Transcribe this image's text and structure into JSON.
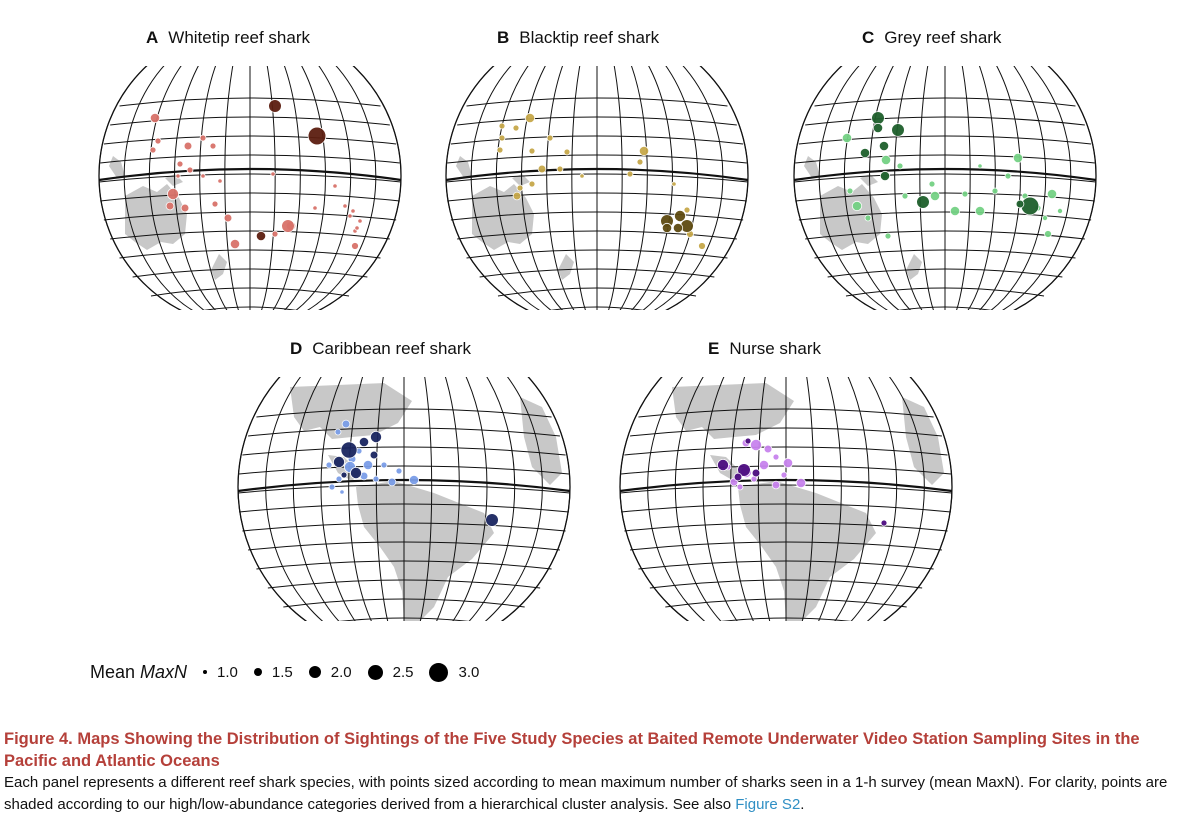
{
  "panels": [
    {
      "letter": "A",
      "title": "Whitetip reef shark",
      "region": "pacific",
      "colors": {
        "light": "#d9726a",
        "dark": "#5c1e10"
      },
      "points": [
        [
          60,
          52,
          "l",
          1.4
        ],
        [
          63,
          75,
          "l",
          1.0
        ],
        [
          58,
          84,
          "l",
          1.0
        ],
        [
          93,
          80,
          "l",
          1.2
        ],
        [
          108,
          72,
          "l",
          1.0
        ],
        [
          118,
          80,
          "l",
          1.0
        ],
        [
          85,
          98,
          "l",
          1.0
        ],
        [
          95,
          104,
          "l",
          1.0
        ],
        [
          108,
          110,
          "l",
          0.8
        ],
        [
          125,
          115,
          "l",
          0.8
        ],
        [
          78,
          128,
          "l",
          1.6
        ],
        [
          75,
          140,
          "l",
          1.2
        ],
        [
          90,
          142,
          "l",
          1.2
        ],
        [
          83,
          110,
          "l",
          0.8
        ],
        [
          133,
          152,
          "l",
          1.2
        ],
        [
          140,
          178,
          "l",
          1.4
        ],
        [
          180,
          168,
          "l",
          1.0
        ],
        [
          196,
          160,
          "l",
          1.4
        ],
        [
          193,
          160,
          "l",
          1.8
        ],
        [
          220,
          142,
          "l",
          0.8
        ],
        [
          240,
          120,
          "l",
          0.8
        ],
        [
          250,
          140,
          "l",
          0.8
        ],
        [
          255,
          150,
          "l",
          0.8
        ],
        [
          258,
          145,
          "l",
          0.8
        ],
        [
          260,
          165,
          "l",
          0.8
        ],
        [
          262,
          162,
          "l",
          0.8
        ],
        [
          265,
          155,
          "l",
          0.8
        ],
        [
          178,
          108,
          "l",
          0.8
        ],
        [
          260,
          180,
          "l",
          1.1
        ],
        [
          120,
          138,
          "l",
          1.0
        ],
        [
          180,
          40,
          "d",
          1.8
        ],
        [
          222,
          70,
          "d",
          2.4
        ],
        [
          166,
          170,
          "d",
          1.4
        ]
      ]
    },
    {
      "letter": "B",
      "title": "Blacktip reef shark",
      "region": "pacific",
      "colors": {
        "light": "#c7a84a",
        "dark": "#5e4a10"
      },
      "points": [
        [
          60,
          60,
          "l",
          1.0
        ],
        [
          74,
          62,
          "l",
          1.0
        ],
        [
          88,
          52,
          "l",
          1.4
        ],
        [
          60,
          72,
          "l",
          1.0
        ],
        [
          58,
          84,
          "l",
          1.0
        ],
        [
          90,
          85,
          "l",
          1.0
        ],
        [
          108,
          72,
          "l",
          1.0
        ],
        [
          125,
          86,
          "l",
          1.0
        ],
        [
          118,
          103,
          "l",
          1.0
        ],
        [
          100,
          103,
          "l",
          1.2
        ],
        [
          90,
          118,
          "l",
          1.0
        ],
        [
          75,
          130,
          "l",
          1.2
        ],
        [
          78,
          122,
          "l",
          1.0
        ],
        [
          188,
          108,
          "l",
          1.0
        ],
        [
          202,
          85,
          "l",
          1.4
        ],
        [
          198,
          96,
          "l",
          1.0
        ],
        [
          232,
          118,
          "l",
          0.8
        ],
        [
          245,
          144,
          "l",
          1.0
        ],
        [
          260,
          180,
          "l",
          1.1
        ],
        [
          248,
          168,
          "l",
          1.1
        ],
        [
          140,
          110,
          "l",
          0.8
        ],
        [
          225,
          155,
          "d",
          1.8
        ],
        [
          238,
          150,
          "d",
          1.6
        ],
        [
          225,
          162,
          "d",
          1.4
        ],
        [
          245,
          160,
          "d",
          1.8
        ],
        [
          236,
          162,
          "d",
          1.4
        ]
      ]
    },
    {
      "letter": "C",
      "title": "Grey reef shark",
      "region": "pacific",
      "colors": {
        "light": "#74d184",
        "dark": "#1e5f2c"
      },
      "points": [
        [
          57,
          72,
          "l",
          1.4
        ],
        [
          96,
          94,
          "l",
          1.4
        ],
        [
          110,
          100,
          "l",
          1.0
        ],
        [
          95,
          110,
          "l",
          1.0
        ],
        [
          60,
          125,
          "l",
          1.0
        ],
        [
          67,
          140,
          "l",
          1.4
        ],
        [
          78,
          152,
          "l",
          1.0
        ],
        [
          98,
          170,
          "l",
          1.0
        ],
        [
          115,
          130,
          "l",
          1.0
        ],
        [
          142,
          118,
          "l",
          1.0
        ],
        [
          145,
          130,
          "l",
          1.4
        ],
        [
          165,
          145,
          "l",
          1.4
        ],
        [
          175,
          128,
          "l",
          1.0
        ],
        [
          190,
          145,
          "l",
          1.4
        ],
        [
          205,
          125,
          "l",
          1.0
        ],
        [
          218,
          110,
          "l",
          1.0
        ],
        [
          228,
          92,
          "l",
          1.4
        ],
        [
          235,
          130,
          "l",
          1.0
        ],
        [
          248,
          142,
          "l",
          1.0
        ],
        [
          262,
          128,
          "l",
          1.4
        ],
        [
          258,
          168,
          "l",
          1.1
        ],
        [
          255,
          152,
          "l",
          0.9
        ],
        [
          270,
          145,
          "l",
          0.9
        ],
        [
          190,
          100,
          "l",
          0.8
        ],
        [
          88,
          52,
          "d",
          1.8
        ],
        [
          108,
          64,
          "d",
          1.8
        ],
        [
          88,
          62,
          "d",
          1.4
        ],
        [
          94,
          80,
          "d",
          1.4
        ],
        [
          75,
          87,
          "d",
          1.4
        ],
        [
          95,
          110,
          "d",
          1.4
        ],
        [
          133,
          136,
          "d",
          1.8
        ],
        [
          240,
          140,
          "d",
          2.4
        ],
        [
          230,
          138,
          "d",
          1.2
        ]
      ]
    },
    {
      "letter": "D",
      "title": "Caribbean reef shark",
      "region": "atlantic",
      "colors": {
        "light": "#7b9ee8",
        "dark": "#1a2560"
      },
      "points": [
        [
          112,
          47,
          "l",
          1.2
        ],
        [
          104,
          55,
          "l",
          1.0
        ],
        [
          125,
          74,
          "l",
          1.0
        ],
        [
          118,
          82,
          "l",
          1.2
        ],
        [
          116,
          90,
          "l",
          1.6
        ],
        [
          134,
          88,
          "l",
          1.4
        ],
        [
          150,
          88,
          "l",
          1.0
        ],
        [
          165,
          94,
          "l",
          1.0
        ],
        [
          180,
          103,
          "l",
          1.4
        ],
        [
          158,
          105,
          "l",
          1.2
        ],
        [
          130,
          99,
          "l",
          1.2
        ],
        [
          105,
          102,
          "l",
          1.0
        ],
        [
          95,
          88,
          "l",
          1.0
        ],
        [
          98,
          110,
          "l",
          1.0
        ],
        [
          108,
          115,
          "l",
          0.8
        ],
        [
          142,
          102,
          "l",
          1.0
        ],
        [
          142,
          60,
          "d",
          1.6
        ],
        [
          130,
          65,
          "d",
          1.4
        ],
        [
          115,
          73,
          "d",
          2.2
        ],
        [
          105,
          85,
          "d",
          1.6
        ],
        [
          122,
          96,
          "d",
          1.6
        ],
        [
          258,
          143,
          "d",
          1.8
        ],
        [
          140,
          78,
          "d",
          1.2
        ],
        [
          110,
          98,
          "d",
          1.0
        ]
      ]
    },
    {
      "letter": "E",
      "title": "Nurse shark",
      "region": "atlantic",
      "colors": {
        "light": "#c883ee",
        "dark": "#4c0c80"
      },
      "points": [
        [
          130,
          66,
          "l",
          1.2
        ],
        [
          140,
          68,
          "l",
          1.6
        ],
        [
          152,
          72,
          "l",
          1.2
        ],
        [
          160,
          80,
          "l",
          1.0
        ],
        [
          172,
          86,
          "l",
          1.4
        ],
        [
          148,
          88,
          "l",
          1.4
        ],
        [
          168,
          98,
          "l",
          1.0
        ],
        [
          185,
          106,
          "l",
          1.4
        ],
        [
          160,
          108,
          "l",
          1.2
        ],
        [
          130,
          95,
          "l",
          1.6
        ],
        [
          118,
          105,
          "l",
          1.2
        ],
        [
          124,
          110,
          "l",
          1.0
        ],
        [
          112,
          90,
          "l",
          1.0
        ],
        [
          138,
          102,
          "l",
          1.0
        ],
        [
          132,
          64,
          "d",
          1.0
        ],
        [
          107,
          88,
          "d",
          1.6
        ],
        [
          128,
          93,
          "d",
          1.8
        ],
        [
          122,
          100,
          "d",
          1.2
        ],
        [
          140,
          96,
          "d",
          1.2
        ],
        [
          268,
          146,
          "d",
          1.0
        ]
      ]
    }
  ],
  "legend": {
    "title_prefix": "Mean ",
    "title_italic": "MaxN",
    "items": [
      {
        "label": "1.0",
        "size": 1.0
      },
      {
        "label": "1.5",
        "size": 1.5
      },
      {
        "label": "2.0",
        "size": 2.0
      },
      {
        "label": "2.5",
        "size": 2.5
      },
      {
        "label": "3.0",
        "size": 3.0
      }
    ]
  },
  "caption": {
    "title": "Figure 4.  Maps Showing the Distribution of Sightings of the Five Study Species at Baited Remote Underwater Video Station Sampling Sites in the Pacific and Atlantic Oceans",
    "body": "Each panel represents a different reef shark species, with points sized according to mean maximum number of sharks seen in a 1-h survey (mean MaxN). For clarity, points are shaded according to our high/low-abundance categories derived from a hierarchical cluster analysis. See also ",
    "link": "Figure S2",
    "end": "."
  }
}
